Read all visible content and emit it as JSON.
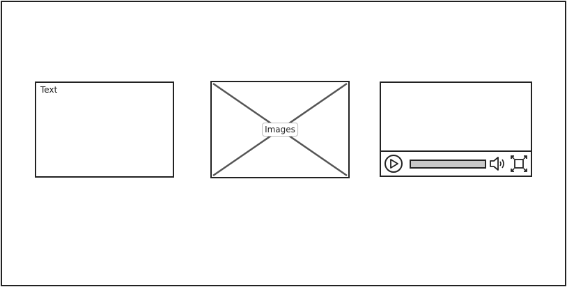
{
  "text_box": {
    "label": "Text"
  },
  "image_placeholder": {
    "label": "Images"
  },
  "video_player": {
    "play_icon": "play-icon",
    "volume_icon": "volume-icon",
    "fullscreen_icon": "fullscreen-icon"
  }
}
